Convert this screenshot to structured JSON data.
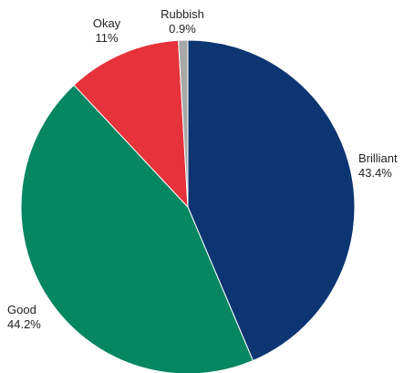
{
  "chart_data": {
    "type": "pie",
    "title": "",
    "slices": [
      {
        "label": "Brilliant",
        "value": 43.4,
        "display": "43.4%",
        "color": "#0d3572"
      },
      {
        "label": "Good",
        "value": 44.2,
        "display": "44.2%",
        "color": "#068661"
      },
      {
        "label": "Okay",
        "value": 11,
        "display": "11%",
        "color": "#e5323b"
      },
      {
        "label": "Rubbish",
        "value": 0.9,
        "display": "0.9%",
        "color": "#a8a8a8"
      }
    ],
    "start_angle_deg": 0,
    "direction": "clockwise",
    "legend": "none",
    "labels": "outside"
  }
}
